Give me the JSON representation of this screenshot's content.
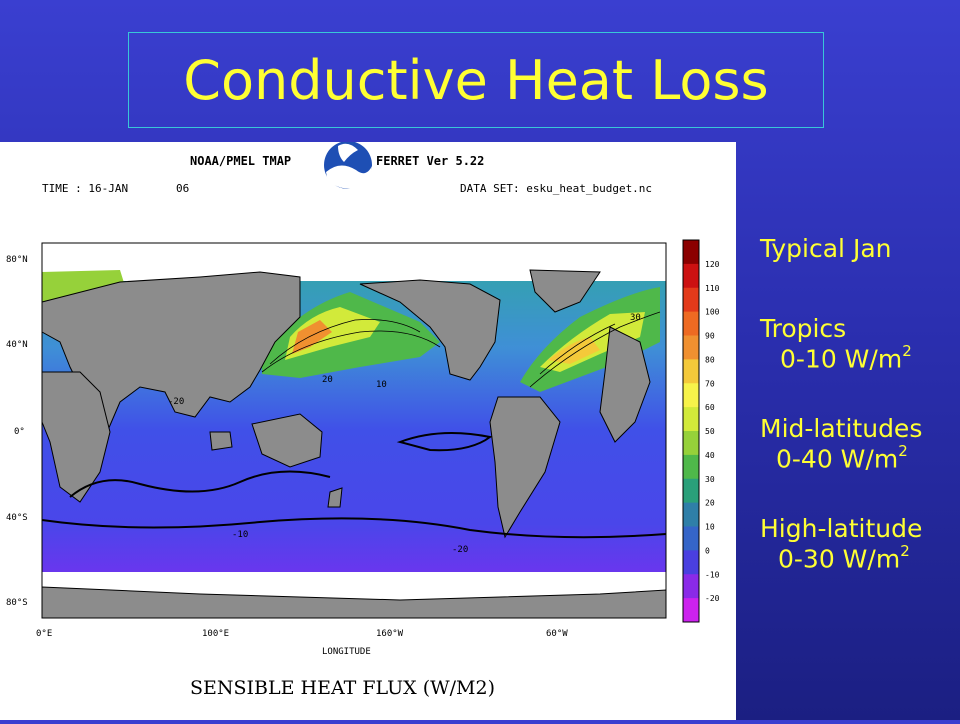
{
  "slide": {
    "title": "Conductive Heat Loss"
  },
  "figure": {
    "header_left": "NOAA/PMEL TMAP",
    "header_right": "FERRET Ver 5.22",
    "time_label": "TIME : 16-JAN",
    "time_num": "06",
    "dataset_label": "DATA SET: esku_heat_budget.nc",
    "x_axis_label": "LONGITUDE",
    "x_ticks": [
      "0°E",
      "100°E",
      "160°W",
      "60°W"
    ],
    "y_ticks": [
      "80°N",
      "40°N",
      "0°",
      "40°S",
      "80°S"
    ],
    "caption": "SENSIBLE HEAT FLUX (W/M2)",
    "contour_labels": [
      "-20",
      "20",
      "-10",
      "10",
      "-20",
      "30"
    ],
    "colorbar": {
      "labels": [
        "120",
        "110",
        "100",
        "90",
        "80",
        "70",
        "60",
        "50",
        "40",
        "30",
        "20",
        "10",
        "0",
        "-10",
        "-20"
      ],
      "colors": [
        "#8b0000",
        "#cc1111",
        "#e33a1a",
        "#ee6a22",
        "#f09030",
        "#f4c93a",
        "#f7f34a",
        "#d2ea3a",
        "#96d13a",
        "#4fb84a",
        "#2aa07a",
        "#2f7fa8",
        "#3565c8",
        "#4a3fe0",
        "#8a2ae8",
        "#cc22ee"
      ]
    }
  },
  "notes": {
    "typical": "Typical Jan",
    "tropics_label": "Tropics",
    "tropics_value": "0-10 W/m",
    "mid_label": "Mid-latitudes",
    "mid_value": "0-40 W/m",
    "high_label": "High-latitude",
    "high_value": "0-30 W/m",
    "superscript": "2"
  }
}
